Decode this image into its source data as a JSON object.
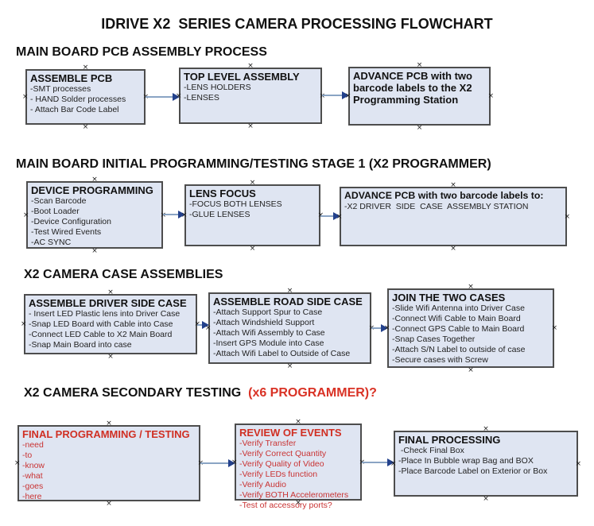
{
  "title": "IDRIVE X2  SERIES CAMERA PROCESSING FLOWCHART",
  "colors": {
    "box_fill": "#dfe5f2",
    "box_border": "#4d4d4d",
    "arrow_line": "#8aa4c4",
    "arrow_head": "#23418c",
    "heading_red": "#d93225",
    "box_red_text": "#c93333",
    "text": "#111111"
  },
  "sections": [
    {
      "heading": "MAIN BOARD PCB ASSEMBLY PROCESS",
      "boxes": [
        {
          "title": "ASSEMBLE PCB",
          "items": [
            "-SMT processes",
            "- HAND Solder processes",
            "- Attach Bar Code Label"
          ]
        },
        {
          "title": "TOP LEVEL ASSEMBLY",
          "items": [
            "-LENS HOLDERS",
            "-LENSES"
          ]
        },
        {
          "title": "ADVANCE PCB with two barcode labels to the X2 Programming Station",
          "items": []
        }
      ]
    },
    {
      "heading": "MAIN BOARD INITIAL PROGRAMMING/TESTING STAGE 1 (X2 PROGRAMMER)",
      "boxes": [
        {
          "title": "DEVICE PROGRAMMING",
          "items": [
            "-Scan Barcode",
            "-Boot Loader",
            "-Device Configuration",
            "-Test Wired Events",
            "-AC SYNC"
          ]
        },
        {
          "title": "LENS FOCUS",
          "items": [
            "-FOCUS BOTH LENSES",
            "-GLUE LENSES"
          ]
        },
        {
          "title": "ADVANCE PCB with two barcode labels to:",
          "items": [
            "-X2 DRIVER  SIDE  CASE  ASSEMBLY STATION"
          ]
        }
      ]
    },
    {
      "heading": "X2 CAMERA CASE ASSEMBLIES",
      "boxes": [
        {
          "title": "ASSEMBLE DRIVER SIDE CASE",
          "items": [
            "- Insert LED Plastic lens into Driver Case",
            "-Snap LED Board with Cable into Case",
            "-Connect LED Cable to X2 Main Board",
            "-Snap Main Board into case"
          ]
        },
        {
          "title": "ASSEMBLE ROAD SIDE CASE",
          "items": [
            "-Attach Support Spur to Case",
            "-Attach Windshield Support",
            "-Attach Wifi Assembly to Case",
            "-Insert GPS Module into Case",
            "-Attach Wifi Label to Outside of Case"
          ]
        },
        {
          "title": "JOIN THE TWO CASES",
          "items": [
            "-Slide Wifi Antenna into Driver Case",
            "-Connect Wifi Cable to Main Board",
            "-Connect GPS Cable to Main Board",
            "-Snap Cases Together",
            "-Attach S/N Label to outside of case",
            "-Secure cases with Screw"
          ]
        }
      ]
    },
    {
      "heading": "X2 CAMERA SECONDARY TESTING",
      "heading_red": "  (x6 PROGRAMMER)?",
      "boxes": [
        {
          "title": "FINAL PROGRAMMING / TESTING",
          "items": [
            "-need",
            "-to",
            "-know",
            "-what",
            "-goes",
            "-here"
          ]
        },
        {
          "title": "REVIEW OF EVENTS",
          "items": [
            "-Verify Transfer",
            "-Verify Correct Quantity",
            "-Verify Quality of Video",
            "-Verify LEDs function",
            "-Verify Audio",
            "-Verify BOTH Accelerometers",
            "-Test of accessory ports?"
          ]
        },
        {
          "title": "FINAL PROCESSING",
          "items": [
            " -Check Final Box",
            "-Place In Bubble wrap Bag and BOX",
            "-Place Barcode Label on Exterior or Box"
          ]
        }
      ]
    }
  ]
}
